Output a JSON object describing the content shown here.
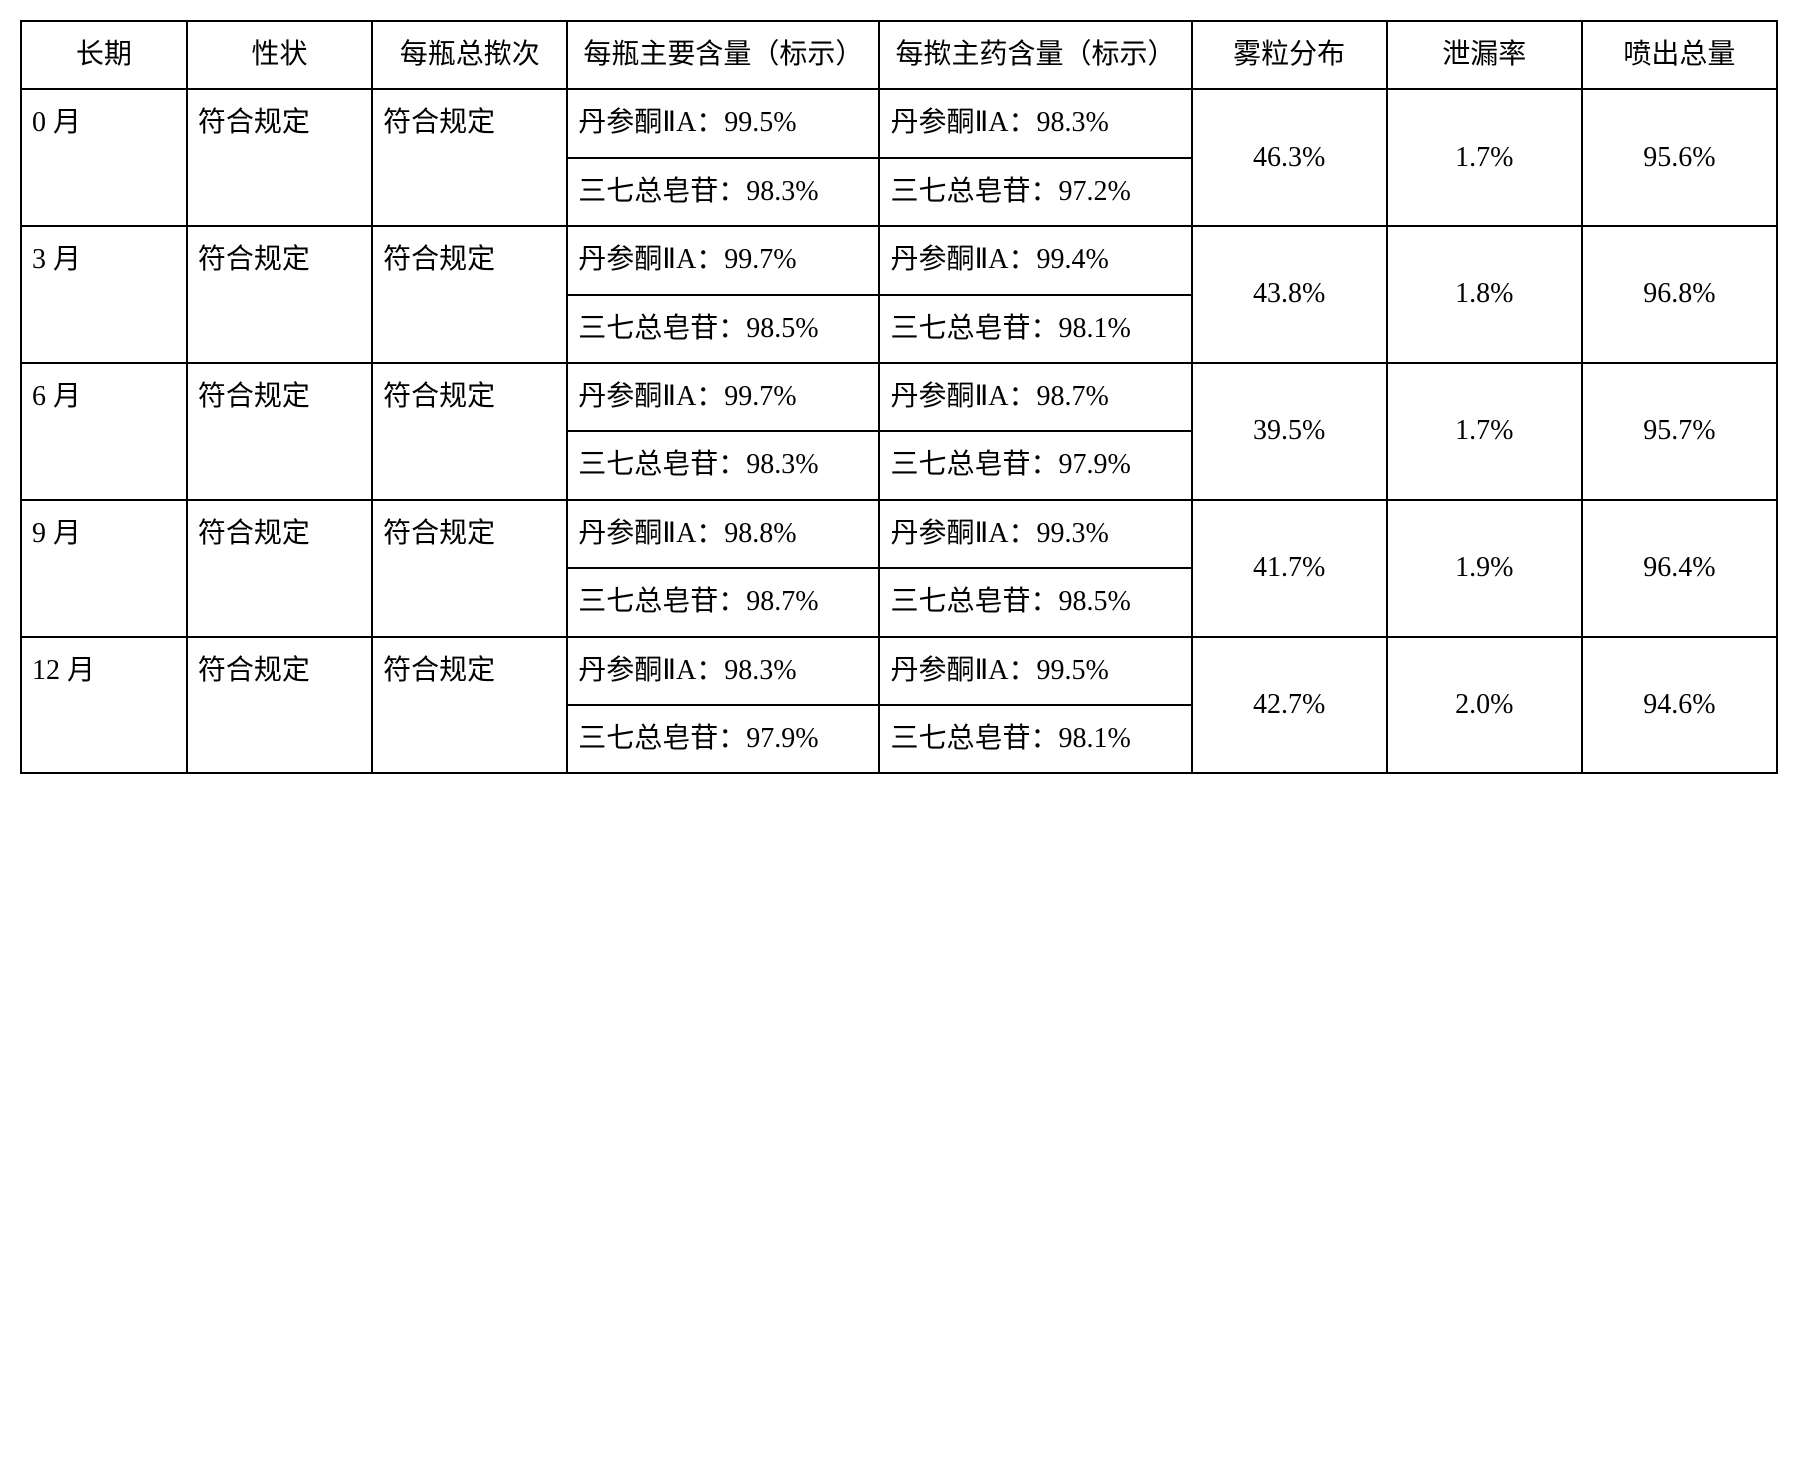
{
  "table": {
    "type": "table",
    "columns": [
      {
        "key": "period",
        "label": "长期",
        "width": 8.5
      },
      {
        "key": "properties",
        "label": "性状",
        "width": 9.5
      },
      {
        "key": "total_puffs",
        "label": "每瓶总揿次",
        "width": 10
      },
      {
        "key": "bottle_main",
        "label": "每瓶主要含量（标示）",
        "width": 16
      },
      {
        "key": "puff_main",
        "label": "每揿主药含量（标示）",
        "width": 16
      },
      {
        "key": "particle",
        "label": "雾粒分布",
        "width": 10
      },
      {
        "key": "leak",
        "label": "泄漏率",
        "width": 10
      },
      {
        "key": "spray_total",
        "label": "喷出总量",
        "width": 10
      }
    ],
    "rows": [
      {
        "period": "0 月",
        "properties": "符合规定",
        "total_puffs": "符合规定",
        "bottle_a": "丹参酮ⅡA：99.5%",
        "bottle_b": "三七总皂苷：98.3%",
        "puff_a": "丹参酮ⅡA：98.3%",
        "puff_b": "三七总皂苷：97.2%",
        "particle": "46.3%",
        "leak": "1.7%",
        "spray_total": "95.6%"
      },
      {
        "period": "3 月",
        "properties": "符合规定",
        "total_puffs": "符合规定",
        "bottle_a": "丹参酮ⅡA：99.7%",
        "bottle_b": "三七总皂苷：98.5%",
        "puff_a": "丹参酮ⅡA：99.4%",
        "puff_b": "三七总皂苷：98.1%",
        "particle": "43.8%",
        "leak": "1.8%",
        "spray_total": "96.8%"
      },
      {
        "period": "6 月",
        "properties": "符合规定",
        "total_puffs": "符合规定",
        "bottle_a": "丹参酮ⅡA：99.7%",
        "bottle_b": "三七总皂苷：98.3%",
        "puff_a": "丹参酮ⅡA：98.7%",
        "puff_b": "三七总皂苷：97.9%",
        "particle": "39.5%",
        "leak": "1.7%",
        "spray_total": "95.7%"
      },
      {
        "period": "9 月",
        "properties": "符合规定",
        "total_puffs": "符合规定",
        "bottle_a": "丹参酮ⅡA：98.8%",
        "bottle_b": "三七总皂苷：98.7%",
        "puff_a": "丹参酮ⅡA：99.3%",
        "puff_b": "三七总皂苷：98.5%",
        "particle": "41.7%",
        "leak": "1.9%",
        "spray_total": "96.4%"
      },
      {
        "period": "12 月",
        "properties": "符合规定",
        "total_puffs": "符合规定",
        "bottle_a": "丹参酮ⅡA：98.3%",
        "bottle_b": "三七总皂苷：97.9%",
        "puff_a": "丹参酮ⅡA：99.5%",
        "puff_b": "三七总皂苷：98.1%",
        "particle": "42.7%",
        "leak": "2.0%",
        "spray_total": "94.6%"
      }
    ],
    "border_color": "#000000",
    "background_color": "#ffffff",
    "font_size": 28
  }
}
